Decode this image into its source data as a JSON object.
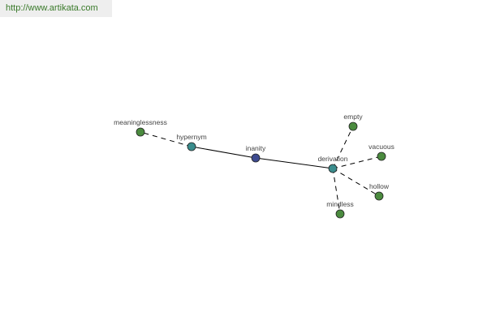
{
  "watermark": "http://www.artikata.com",
  "colors": {
    "root": "#3d4a8f",
    "relation": "#3a8d8d",
    "word": "#4b8b3f",
    "edge": "#000000"
  },
  "nodes": [
    {
      "id": "inanity",
      "label": "inanity",
      "type": "root"
    },
    {
      "id": "hypernym",
      "label": "hypernym",
      "type": "relation"
    },
    {
      "id": "derivation",
      "label": "derivation",
      "type": "relation"
    },
    {
      "id": "meaninglessness",
      "label": "meaninglessness",
      "type": "word"
    },
    {
      "id": "empty",
      "label": "empty",
      "type": "word"
    },
    {
      "id": "vacuous",
      "label": "vacuous",
      "type": "word"
    },
    {
      "id": "hollow",
      "label": "hollow",
      "type": "word"
    },
    {
      "id": "mindless",
      "label": "mindless",
      "type": "word"
    }
  ],
  "edges": [
    {
      "from": "inanity",
      "to": "hypernym",
      "style": "solid"
    },
    {
      "from": "inanity",
      "to": "derivation",
      "style": "solid"
    },
    {
      "from": "hypernym",
      "to": "meaninglessness",
      "style": "dashed"
    },
    {
      "from": "derivation",
      "to": "empty",
      "style": "dashed"
    },
    {
      "from": "derivation",
      "to": "vacuous",
      "style": "dashed"
    },
    {
      "from": "derivation",
      "to": "hollow",
      "style": "dashed"
    },
    {
      "from": "derivation",
      "to": "mindless",
      "style": "dashed"
    }
  ]
}
